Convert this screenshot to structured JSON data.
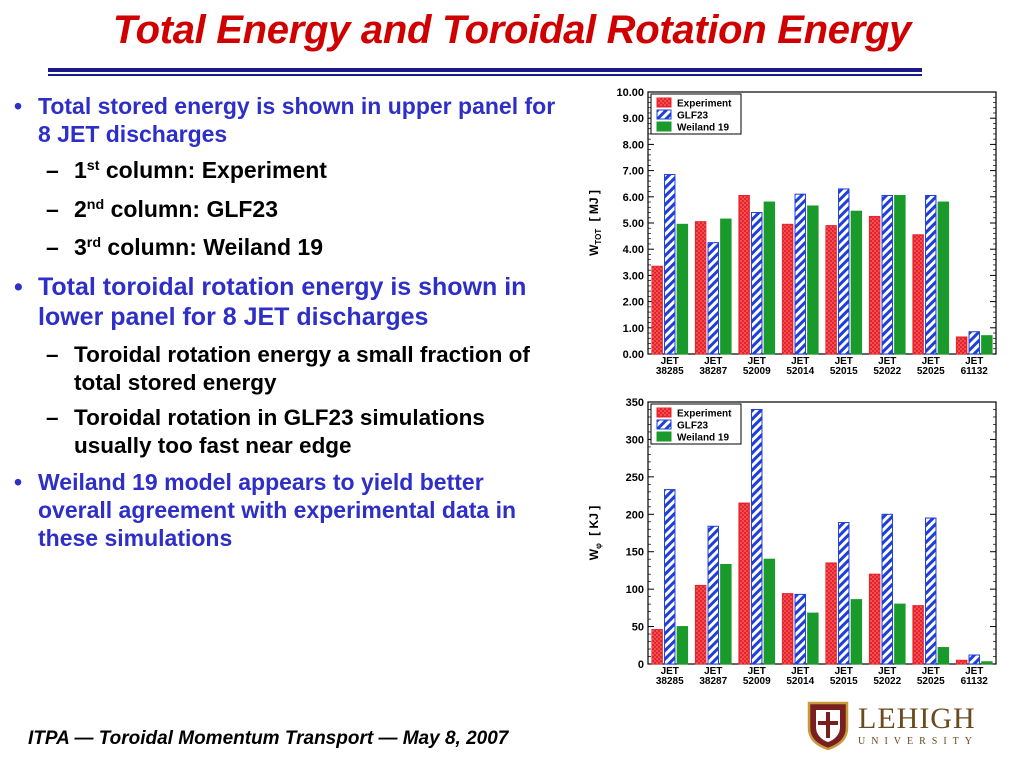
{
  "slide": {
    "title": "Total Energy and Toroidal Rotation Energy",
    "bullets": [
      {
        "text": "Total stored energy is shown in upper panel for 8 JET discharges"
      },
      {
        "text": "Total toroidal rotation energy is shown in lower panel for 8 JET discharges"
      },
      {
        "text": "Weiland 19 model appears to yield better overall agreement with experimental data in these simulations"
      }
    ],
    "sub1": [
      {
        "num": "1",
        "sup": "st",
        "rest": " column: Experiment"
      },
      {
        "num": "2",
        "sup": "nd",
        "rest": " column: GLF23"
      },
      {
        "num": "3",
        "sup": "rd",
        "rest": " column: Weiland 19"
      }
    ],
    "sub2": [
      {
        "text": "Toroidal rotation energy a small fraction of total stored energy"
      },
      {
        "text": "Toroidal rotation in GLF23 simulations usually too fast near edge"
      }
    ],
    "footer": "ITPA — Toroidal Momentum Transport — May 8, 2007",
    "logo": {
      "name": "LEHIGH",
      "subtitle": "UNIVERSITY"
    }
  },
  "colors": {
    "title": "#d00000",
    "bullet": "#2e2ec8",
    "experiment": "#e8232a",
    "glf23": "#1f3fd6",
    "weiland": "#1a9a2a"
  },
  "chart_data": [
    {
      "type": "bar",
      "categories": [
        "JET 38285",
        "JET 38287",
        "JET 52009",
        "JET 52014",
        "JET 52015",
        "JET 52022",
        "JET 52025",
        "JET 61132"
      ],
      "series": [
        {
          "name": "Experiment",
          "values": [
            3.35,
            5.05,
            6.05,
            4.95,
            4.9,
            5.25,
            4.55,
            0.65
          ]
        },
        {
          "name": "GLF23",
          "values": [
            6.85,
            4.25,
            5.4,
            6.1,
            6.3,
            6.05,
            6.05,
            0.85
          ]
        },
        {
          "name": "Weiland 19",
          "values": [
            4.95,
            5.15,
            5.8,
            5.65,
            5.45,
            6.05,
            5.8,
            0.7
          ]
        }
      ],
      "ylabel": "W",
      "ylabel_sub": "TOT",
      "ylabel_unit": "[ MJ ]",
      "ylim": [
        0,
        10
      ],
      "yticks": [
        "0.00",
        "1.00",
        "2.00",
        "3.00",
        "4.00",
        "5.00",
        "6.00",
        "7.00",
        "8.00",
        "9.00",
        "10.00"
      ],
      "legend": "top-left"
    },
    {
      "type": "bar",
      "categories": [
        "JET 38285",
        "JET 38287",
        "JET 52009",
        "JET 52014",
        "JET 52015",
        "JET 52022",
        "JET 52025",
        "JET 61132"
      ],
      "series": [
        {
          "name": "Experiment",
          "values": [
            46,
            105,
            215,
            94,
            135,
            120,
            78,
            5
          ]
        },
        {
          "name": "GLF23",
          "values": [
            233,
            184,
            340,
            93,
            189,
            200,
            195,
            12
          ]
        },
        {
          "name": "Weiland 19",
          "values": [
            50,
            133,
            140,
            68,
            86,
            80,
            22,
            3
          ]
        }
      ],
      "ylabel": "W",
      "ylabel_sub": "φ",
      "ylabel_unit": "[ KJ ]",
      "ylim": [
        0,
        350
      ],
      "yticks": [
        "0",
        "50",
        "100",
        "150",
        "200",
        "250",
        "300",
        "350"
      ],
      "legend": "top-left"
    }
  ]
}
